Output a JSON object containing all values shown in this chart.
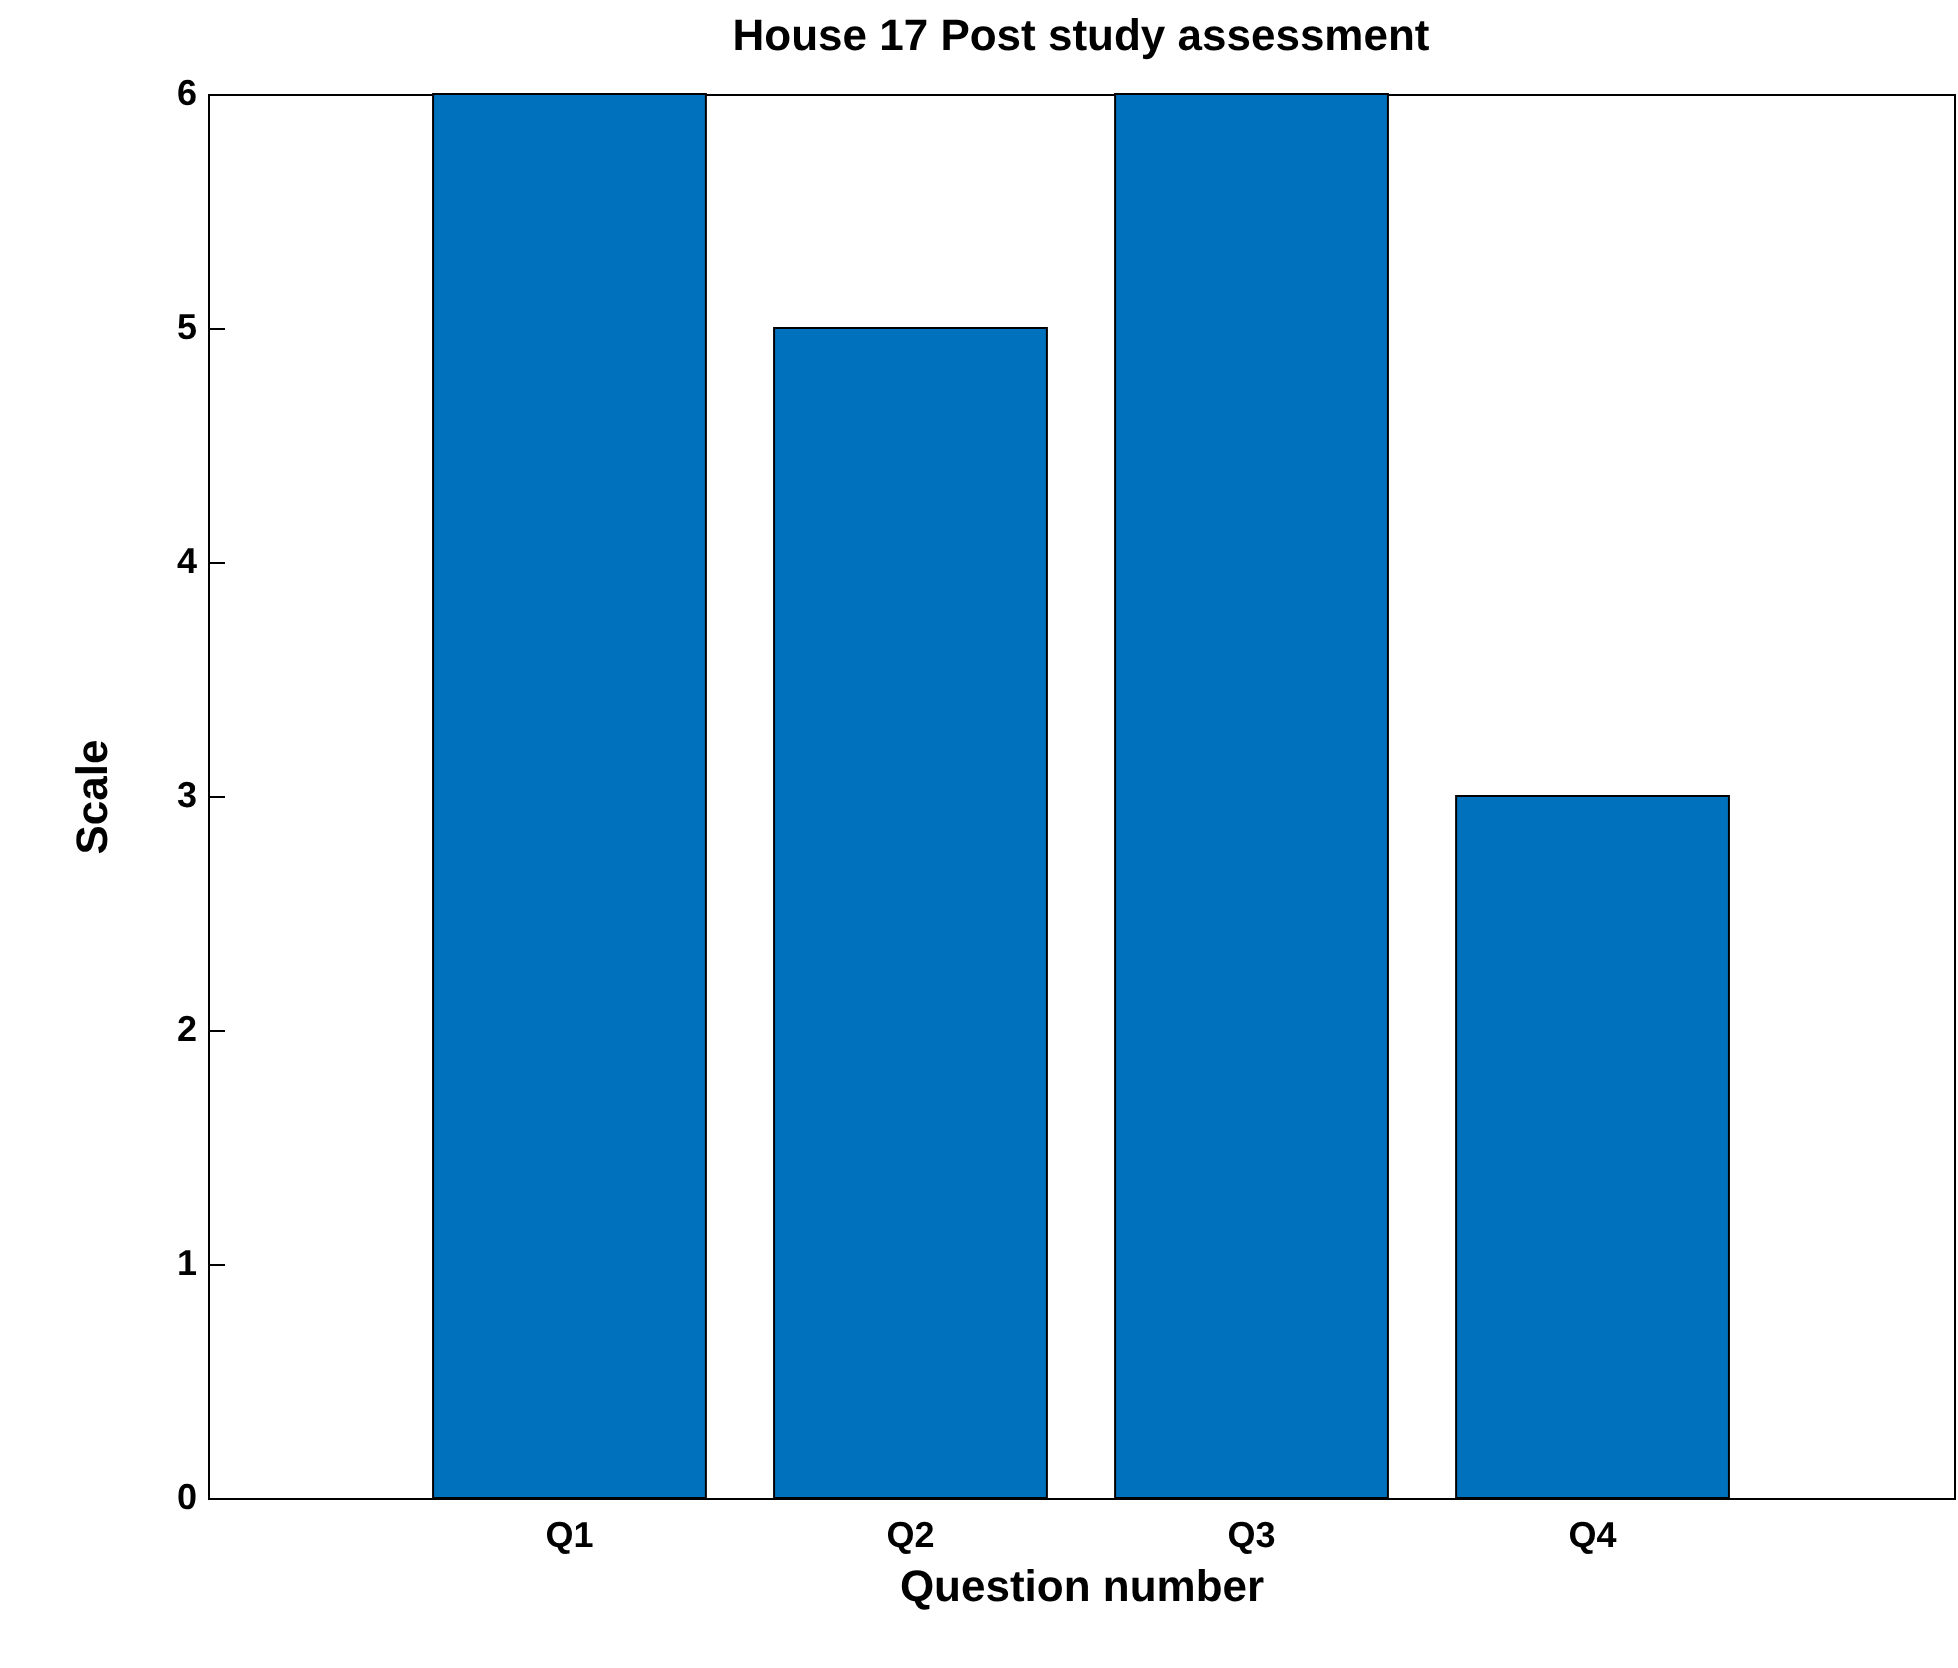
{
  "chart_data": {
    "type": "bar",
    "title": "House 17 Post study assessment",
    "xlabel": "Question number",
    "ylabel": "Scale",
    "categories": [
      "Q1",
      "Q2",
      "Q3",
      "Q4"
    ],
    "values": [
      6,
      5,
      6,
      3
    ],
    "color": "#0072bd",
    "ylim": [
      0,
      6
    ],
    "yticks": [
      0,
      1,
      2,
      3,
      4,
      5,
      6
    ],
    "grid": false
  }
}
